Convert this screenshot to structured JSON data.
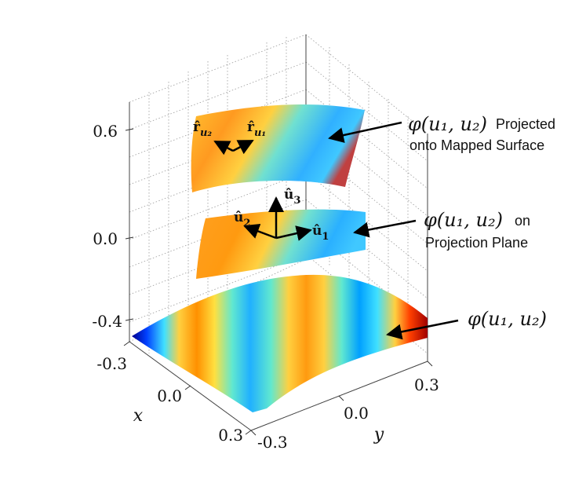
{
  "figure": {
    "z_ticks": [
      "0.6",
      "0.0",
      "-0.4"
    ],
    "x_ticks": [
      "-0.3",
      "0.0",
      "0.3"
    ],
    "y_ticks": [
      "0.3",
      "0.0",
      "-0.3"
    ],
    "x_axis_label": "x",
    "y_axis_label": "y",
    "annotations": {
      "top": {
        "math": "φ(u₁, u₂)",
        "word1": "Projected",
        "word2": "onto Mapped Surface"
      },
      "middle": {
        "math": "φ(u₁, u₂)",
        "word1": "on",
        "word2": "Projection Plane"
      },
      "bottom": {
        "math": "φ(u₁, u₂)"
      }
    },
    "vectors": {
      "r_u2": "r̂",
      "r_u2_sub": "u₂",
      "r_u1": "r̂",
      "r_u1_sub": "u₁",
      "u3": "û",
      "u3_sub": "3",
      "u2": "û",
      "u2_sub": "2",
      "u1": "û",
      "u1_sub": "1"
    },
    "colormap": [
      "#00008f",
      "#0050ff",
      "#00bfff",
      "#80ffc0",
      "#ffe040",
      "#ff8000",
      "#e00000",
      "#800000"
    ]
  }
}
